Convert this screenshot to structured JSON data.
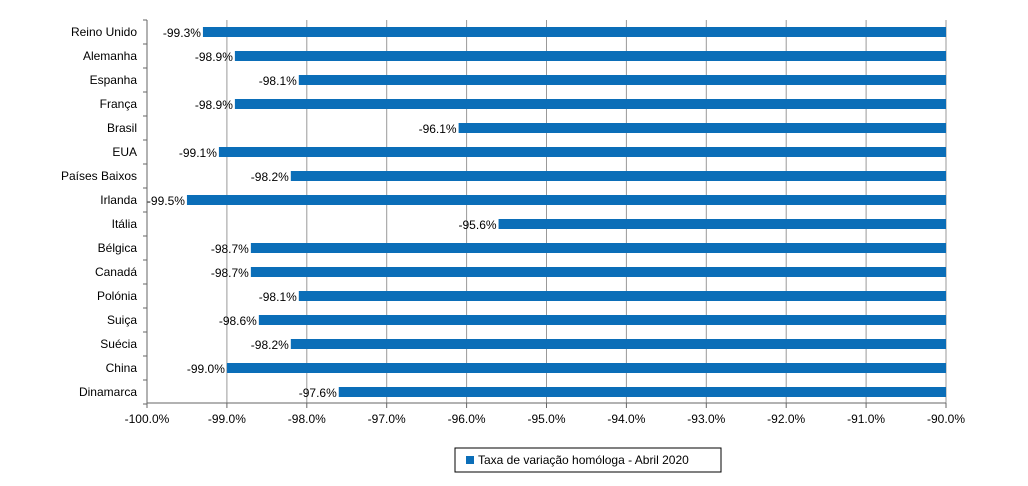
{
  "chart_data": {
    "type": "bar",
    "orientation": "horizontal",
    "title": "",
    "xlabel": "",
    "ylabel": "",
    "categories": [
      "Reino Unido",
      "Alemanha",
      "Espanha",
      "França",
      "Brasil",
      "EUA",
      "Países Baixos",
      "Irlanda",
      "Itália",
      "Bélgica",
      "Canadá",
      "Polónia",
      "Suiça",
      "Suécia",
      "China",
      "Dinamarca"
    ],
    "series": [
      {
        "name": "Taxa de variação homóloga - Abril 2020",
        "color": "#0b6eb8",
        "values": [
          -99.3,
          -98.9,
          -98.1,
          -98.9,
          -96.1,
          -99.1,
          -98.2,
          -99.5,
          -95.6,
          -98.7,
          -98.7,
          -98.1,
          -98.6,
          -98.2,
          -99.0,
          -97.6
        ],
        "data_labels": [
          "-99.3%",
          "-98.9%",
          "-98.1%",
          "-98.9%",
          "-96.1%",
          "-99.1%",
          "-98.2%",
          "-99.5%",
          "-95.6%",
          "-98.7%",
          "-98.7%",
          "-98.1%",
          "-98.6%",
          "-98.2%",
          "-99.0%",
          "-97.6%"
        ]
      }
    ],
    "xlim": [
      -100.0,
      -90.0
    ],
    "x_ticks": [
      -100,
      -99,
      -98,
      -97,
      -96,
      -95,
      -94,
      -93,
      -92,
      -91,
      -90
    ],
    "x_tick_labels": [
      "-100.0%",
      "-99.0%",
      "-98.0%",
      "-97.0%",
      "-96.0%",
      "-95.0%",
      "-94.0%",
      "-93.0%",
      "-92.0%",
      "-91.0%",
      "-90.0%"
    ],
    "grid": "vertical",
    "gridline_color": "#999999",
    "legend": {
      "position": "bottom"
    }
  }
}
